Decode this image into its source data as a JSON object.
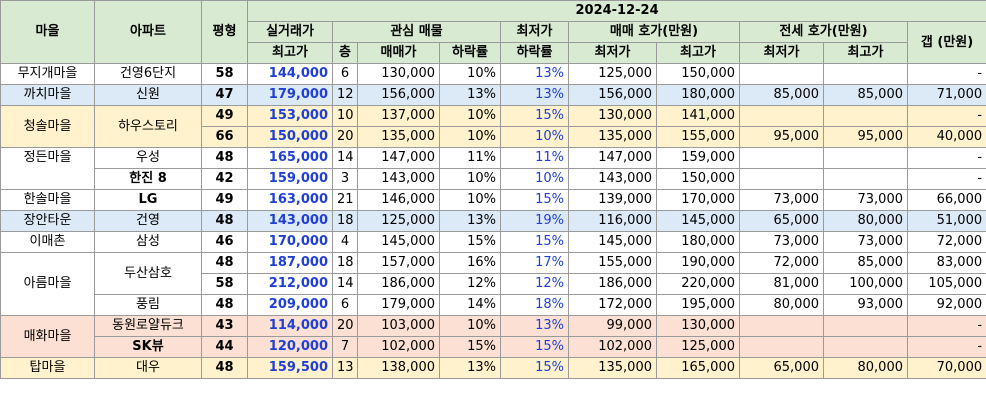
{
  "headers": {
    "village": "마을",
    "apartment": "아파트",
    "pyeong": "평형",
    "actual_top": "실거래가",
    "actual_bottom": "최고가",
    "date": "2024-12-24",
    "interest": "관심 매물",
    "floor": "층",
    "sale_price": "매매가",
    "drop_rate": "하락률",
    "lowest_top": "최저가",
    "lowest_bottom": "하락률",
    "sale_ask": "매매 호가(만원)",
    "jeonse_ask": "전세 호가(만원)",
    "min": "최저가",
    "max": "최고가",
    "gap": "갭 (만원)"
  },
  "villages": [
    "무지개마을",
    "까치마을",
    "청솔마을",
    "정든마을",
    "한솔마을",
    "장안타운",
    "이매촌",
    "아름마을",
    "매화마을",
    "탑마을"
  ],
  "apartments": [
    "건영6단지",
    "신원",
    "하우스토리",
    "우성",
    "한진 8",
    "LG",
    "건영",
    "삼성",
    "두산삼호",
    "풍림",
    "동원로얄듀크",
    "SK뷰",
    "대우"
  ],
  "rows": [
    {
      "pyeong": "58",
      "actual_max": "144,000",
      "floor": "6",
      "sale": "130,000",
      "drop": "10%",
      "low_drop": "13%",
      "sale_min": "125,000",
      "sale_max": "150,000",
      "jeonse_min": "",
      "jeonse_max": "",
      "gap": "-"
    },
    {
      "pyeong": "47",
      "actual_max": "179,000",
      "floor": "12",
      "sale": "156,000",
      "drop": "13%",
      "low_drop": "13%",
      "sale_min": "156,000",
      "sale_max": "180,000",
      "jeonse_min": "85,000",
      "jeonse_max": "85,000",
      "gap": "71,000"
    },
    {
      "pyeong": "49",
      "actual_max": "153,000",
      "floor": "10",
      "sale": "137,000",
      "drop": "10%",
      "low_drop": "15%",
      "sale_min": "130,000",
      "sale_max": "141,000",
      "jeonse_min": "",
      "jeonse_max": "",
      "gap": "-"
    },
    {
      "pyeong": "66",
      "actual_max": "150,000",
      "floor": "20",
      "sale": "135,000",
      "drop": "10%",
      "low_drop": "10%",
      "sale_min": "135,000",
      "sale_max": "155,000",
      "jeonse_min": "95,000",
      "jeonse_max": "95,000",
      "gap": "40,000"
    },
    {
      "pyeong": "48",
      "actual_max": "165,000",
      "floor": "14",
      "sale": "147,000",
      "drop": "11%",
      "low_drop": "11%",
      "sale_min": "147,000",
      "sale_max": "159,000",
      "jeonse_min": "",
      "jeonse_max": "",
      "gap": "-"
    },
    {
      "pyeong": "42",
      "actual_max": "159,000",
      "floor": "3",
      "sale": "143,000",
      "drop": "10%",
      "low_drop": "10%",
      "sale_min": "143,000",
      "sale_max": "150,000",
      "jeonse_min": "",
      "jeonse_max": "",
      "gap": "-"
    },
    {
      "pyeong": "49",
      "actual_max": "163,000",
      "floor": "21",
      "sale": "146,000",
      "drop": "10%",
      "low_drop": "15%",
      "sale_min": "139,000",
      "sale_max": "170,000",
      "jeonse_min": "73,000",
      "jeonse_max": "73,000",
      "gap": "66,000"
    },
    {
      "pyeong": "48",
      "actual_max": "143,000",
      "floor": "18",
      "sale": "125,000",
      "drop": "13%",
      "low_drop": "19%",
      "sale_min": "116,000",
      "sale_max": "145,000",
      "jeonse_min": "65,000",
      "jeonse_max": "80,000",
      "gap": "51,000"
    },
    {
      "pyeong": "46",
      "actual_max": "170,000",
      "floor": "4",
      "sale": "145,000",
      "drop": "15%",
      "low_drop": "15%",
      "sale_min": "145,000",
      "sale_max": "180,000",
      "jeonse_min": "73,000",
      "jeonse_max": "73,000",
      "gap": "72,000"
    },
    {
      "pyeong": "48",
      "actual_max": "187,000",
      "floor": "18",
      "sale": "157,000",
      "drop": "16%",
      "low_drop": "17%",
      "sale_min": "155,000",
      "sale_max": "190,000",
      "jeonse_min": "72,000",
      "jeonse_max": "85,000",
      "gap": "83,000"
    },
    {
      "pyeong": "58",
      "actual_max": "212,000",
      "floor": "14",
      "sale": "186,000",
      "drop": "12%",
      "low_drop": "12%",
      "sale_min": "186,000",
      "sale_max": "220,000",
      "jeonse_min": "81,000",
      "jeonse_max": "100,000",
      "gap": "105,000"
    },
    {
      "pyeong": "48",
      "actual_max": "209,000",
      "floor": "6",
      "sale": "179,000",
      "drop": "14%",
      "low_drop": "18%",
      "sale_min": "172,000",
      "sale_max": "195,000",
      "jeonse_min": "80,000",
      "jeonse_max": "93,000",
      "gap": "92,000"
    },
    {
      "pyeong": "43",
      "actual_max": "114,000",
      "floor": "20",
      "sale": "103,000",
      "drop": "10%",
      "low_drop": "13%",
      "sale_min": "99,000",
      "sale_max": "130,000",
      "jeonse_min": "",
      "jeonse_max": "",
      "gap": "-"
    },
    {
      "pyeong": "44",
      "actual_max": "120,000",
      "floor": "7",
      "sale": "102,000",
      "drop": "15%",
      "low_drop": "15%",
      "sale_min": "102,000",
      "sale_max": "125,000",
      "jeonse_min": "",
      "jeonse_max": "",
      "gap": "-"
    },
    {
      "pyeong": "48",
      "actual_max": "159,500",
      "floor": "13",
      "sale": "138,000",
      "drop": "13%",
      "low_drop": "15%",
      "sale_min": "135,000",
      "sale_max": "165,000",
      "jeonse_min": "65,000",
      "jeonse_max": "80,000",
      "gap": "70,000"
    }
  ],
  "colors": {
    "header_bg": "#d9ead3",
    "blue_band": "#dce9f6",
    "yellow_band": "#fff2cc",
    "orange_band": "#fbe0d3",
    "blue_text": "#1f3fd6"
  }
}
